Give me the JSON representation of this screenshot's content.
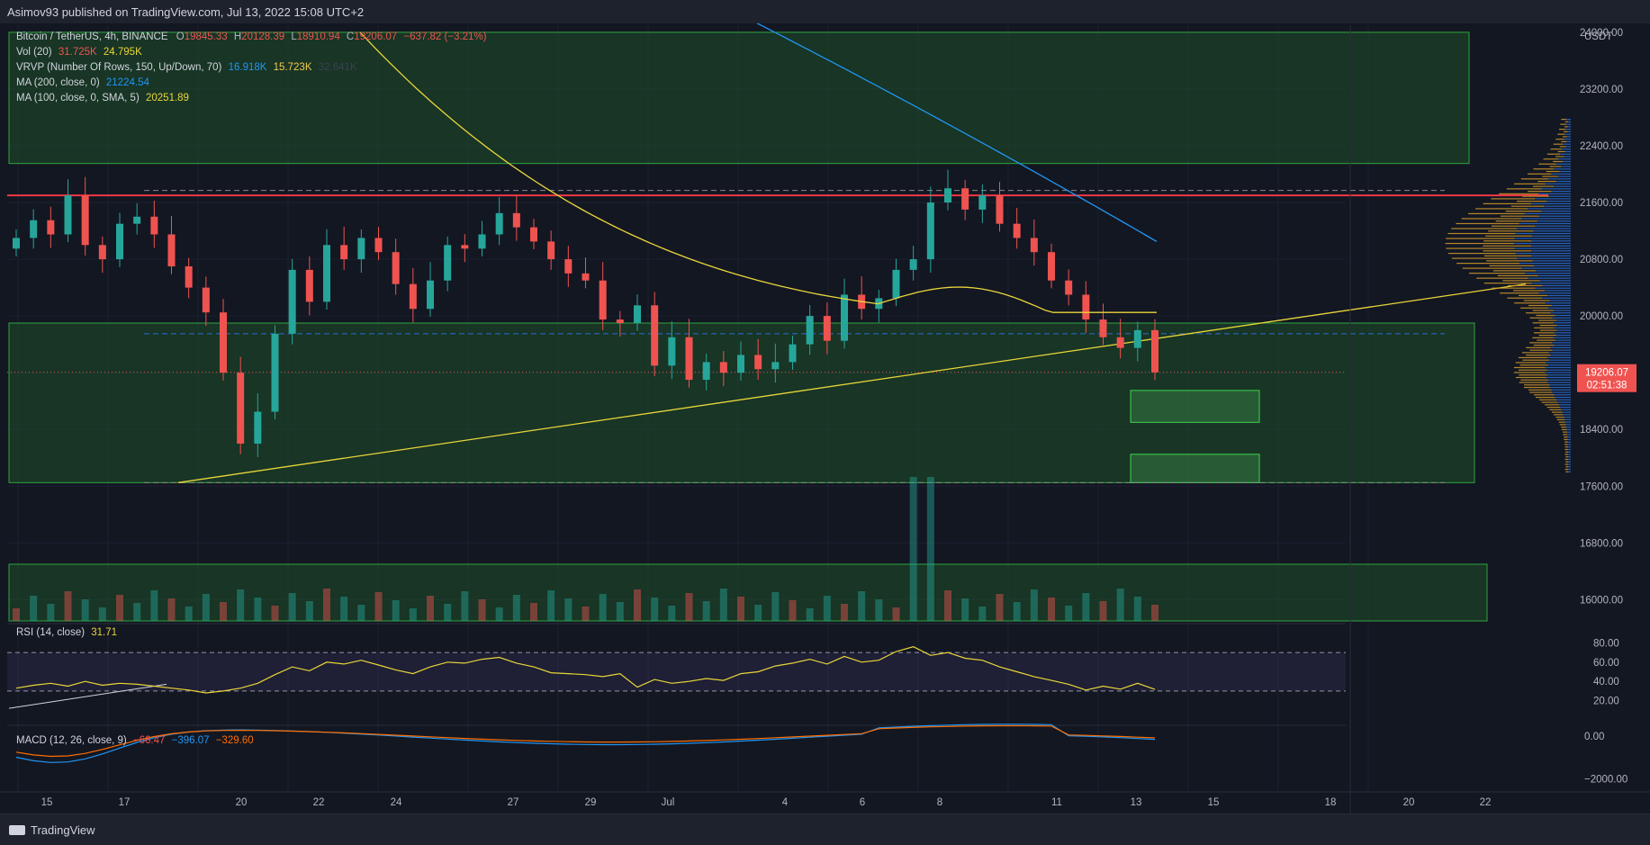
{
  "header": {
    "publish_text": "Asimov93 published on TradingView.com, Jul 13, 2022 15:08 UTC+2"
  },
  "quote": {
    "pair": "Bitcoin / TetherUS, 4h, BINANCE",
    "open_label": "O",
    "open": "19845.33",
    "high_label": "H",
    "high": "20128.39",
    "low_label": "L",
    "low": "18910.94",
    "close_label": "C",
    "close": "19206.07",
    "change": "−637.82 (−3.21%)"
  },
  "indicators": {
    "vol": {
      "label": "Vol (20)",
      "v1": "31.725K",
      "v2": "24.795K"
    },
    "vrvp": {
      "label": "VRVP (Number Of Rows, 150, Up/Down, 70)",
      "v1": "16.918K",
      "v2": "15.723K",
      "v3": "32.641K"
    },
    "ma200": {
      "label": "MA (200, close, 0)",
      "value": "21224.54"
    },
    "ma100": {
      "label": "MA (100, close, 0, SMA, 5)",
      "value": "20251.89"
    },
    "rsi": {
      "label": "RSI (14, close)",
      "value": "31.71"
    },
    "macd": {
      "label": "MACD (12, 26, close, 9)",
      "v1": "−66.47",
      "v2": "−396.07",
      "v3": "−329.60"
    }
  },
  "price_axis": {
    "currency": "USDT",
    "ticks": [
      "24000.00",
      "23200.00",
      "22400.00",
      "21600.00",
      "20800.00",
      "20000.00",
      "19200.00",
      "18400.00",
      "17600.00",
      "16800.00",
      "16000.00"
    ],
    "current_price": "19206.07",
    "countdown": "02:51:38"
  },
  "rsi_axis": {
    "ticks": [
      "80.00",
      "60.00",
      "40.00",
      "20.00"
    ]
  },
  "macd_axis": {
    "ticks": [
      "0.00",
      "−2000.00"
    ]
  },
  "time_axis": {
    "labels": [
      "15",
      "17",
      "20",
      "22",
      "24",
      "27",
      "29",
      "Jul",
      "4",
      "6",
      "8",
      "11",
      "13",
      "15",
      "18",
      "20",
      "22"
    ]
  },
  "footer": {
    "logo_text": "TradingView"
  },
  "colors": {
    "bg": "#131722",
    "up": "#26a69a",
    "down": "#ef5350",
    "ma100": "#e9d63a",
    "ma200": "#2196f3",
    "zone": "#1e5a2a",
    "rsi": "#e9d63a",
    "macd": "#2196f3",
    "signal": "#ff6d00"
  },
  "chart_data": {
    "type": "candlestick",
    "title": "Bitcoin / TetherUS, 4h, BINANCE",
    "x_range": [
      "Jun 14",
      "Jul 22"
    ],
    "ylim": [
      15700,
      24100
    ],
    "ohlc_close_path": [
      [
        0,
        21100
      ],
      [
        1,
        21350
      ],
      [
        2,
        21150
      ],
      [
        3,
        21700
      ],
      [
        4,
        21000
      ],
      [
        5,
        20800
      ],
      [
        6,
        21300
      ],
      [
        7,
        21400
      ],
      [
        8,
        21150
      ],
      [
        9,
        20700
      ],
      [
        10,
        20400
      ],
      [
        11,
        20050
      ],
      [
        12,
        19200
      ],
      [
        13,
        18200
      ],
      [
        14,
        18650
      ],
      [
        15,
        19750
      ],
      [
        16,
        20650
      ],
      [
        17,
        20200
      ],
      [
        18,
        21000
      ],
      [
        19,
        20800
      ],
      [
        20,
        21100
      ],
      [
        21,
        20900
      ],
      [
        22,
        20450
      ],
      [
        23,
        20100
      ],
      [
        24,
        20500
      ],
      [
        25,
        21000
      ],
      [
        26,
        20950
      ],
      [
        27,
        21150
      ],
      [
        28,
        21450
      ],
      [
        29,
        21250
      ],
      [
        30,
        21050
      ],
      [
        31,
        20800
      ],
      [
        32,
        20600
      ],
      [
        33,
        20500
      ],
      [
        34,
        19950
      ],
      [
        35,
        19900
      ],
      [
        36,
        20150
      ],
      [
        37,
        19300
      ],
      [
        38,
        19700
      ],
      [
        39,
        19100
      ],
      [
        40,
        19350
      ],
      [
        41,
        19200
      ],
      [
        42,
        19450
      ],
      [
        43,
        19250
      ],
      [
        44,
        19350
      ],
      [
        45,
        19600
      ],
      [
        46,
        20000
      ],
      [
        47,
        19650
      ],
      [
        48,
        20300
      ],
      [
        49,
        20100
      ],
      [
        50,
        20250
      ],
      [
        51,
        20650
      ],
      [
        52,
        20800
      ],
      [
        53,
        21600
      ],
      [
        54,
        21800
      ],
      [
        55,
        21500
      ],
      [
        56,
        21700
      ],
      [
        57,
        21300
      ],
      [
        58,
        21100
      ],
      [
        59,
        20900
      ],
      [
        60,
        20500
      ],
      [
        61,
        20300
      ],
      [
        62,
        19950
      ],
      [
        63,
        19700
      ],
      [
        64,
        19550
      ],
      [
        65,
        19800
      ],
      [
        66,
        19206
      ]
    ],
    "current_price": 19206.07,
    "support_zone": [
      17650,
      19900
    ],
    "resistance_zone": [
      22150,
      24000
    ],
    "target_boxes": [
      [
        18500,
        18950
      ],
      [
        17650,
        18050
      ]
    ],
    "horizontal_lines": [
      21700,
      21770,
      19750,
      17650
    ],
    "rsi_levels": [
      70,
      30
    ],
    "rsi_range": [
      0,
      100
    ],
    "rsi_values": [
      33,
      36,
      38,
      35,
      40,
      36,
      38,
      37,
      35,
      33,
      31,
      28,
      30,
      33,
      38,
      47,
      55,
      51,
      60,
      58,
      62,
      57,
      52,
      48,
      55,
      60,
      59,
      63,
      65,
      59,
      55,
      49,
      48,
      47,
      45,
      48,
      34,
      42,
      38,
      40,
      43,
      41,
      48,
      50,
      56,
      59,
      63,
      58,
      66,
      60,
      62,
      71,
      76,
      67,
      70,
      64,
      62,
      55,
      50,
      45,
      41,
      37,
      31,
      35,
      32,
      38,
      31.71
    ],
    "macd_range": [
      -2600,
      500
    ]
  }
}
